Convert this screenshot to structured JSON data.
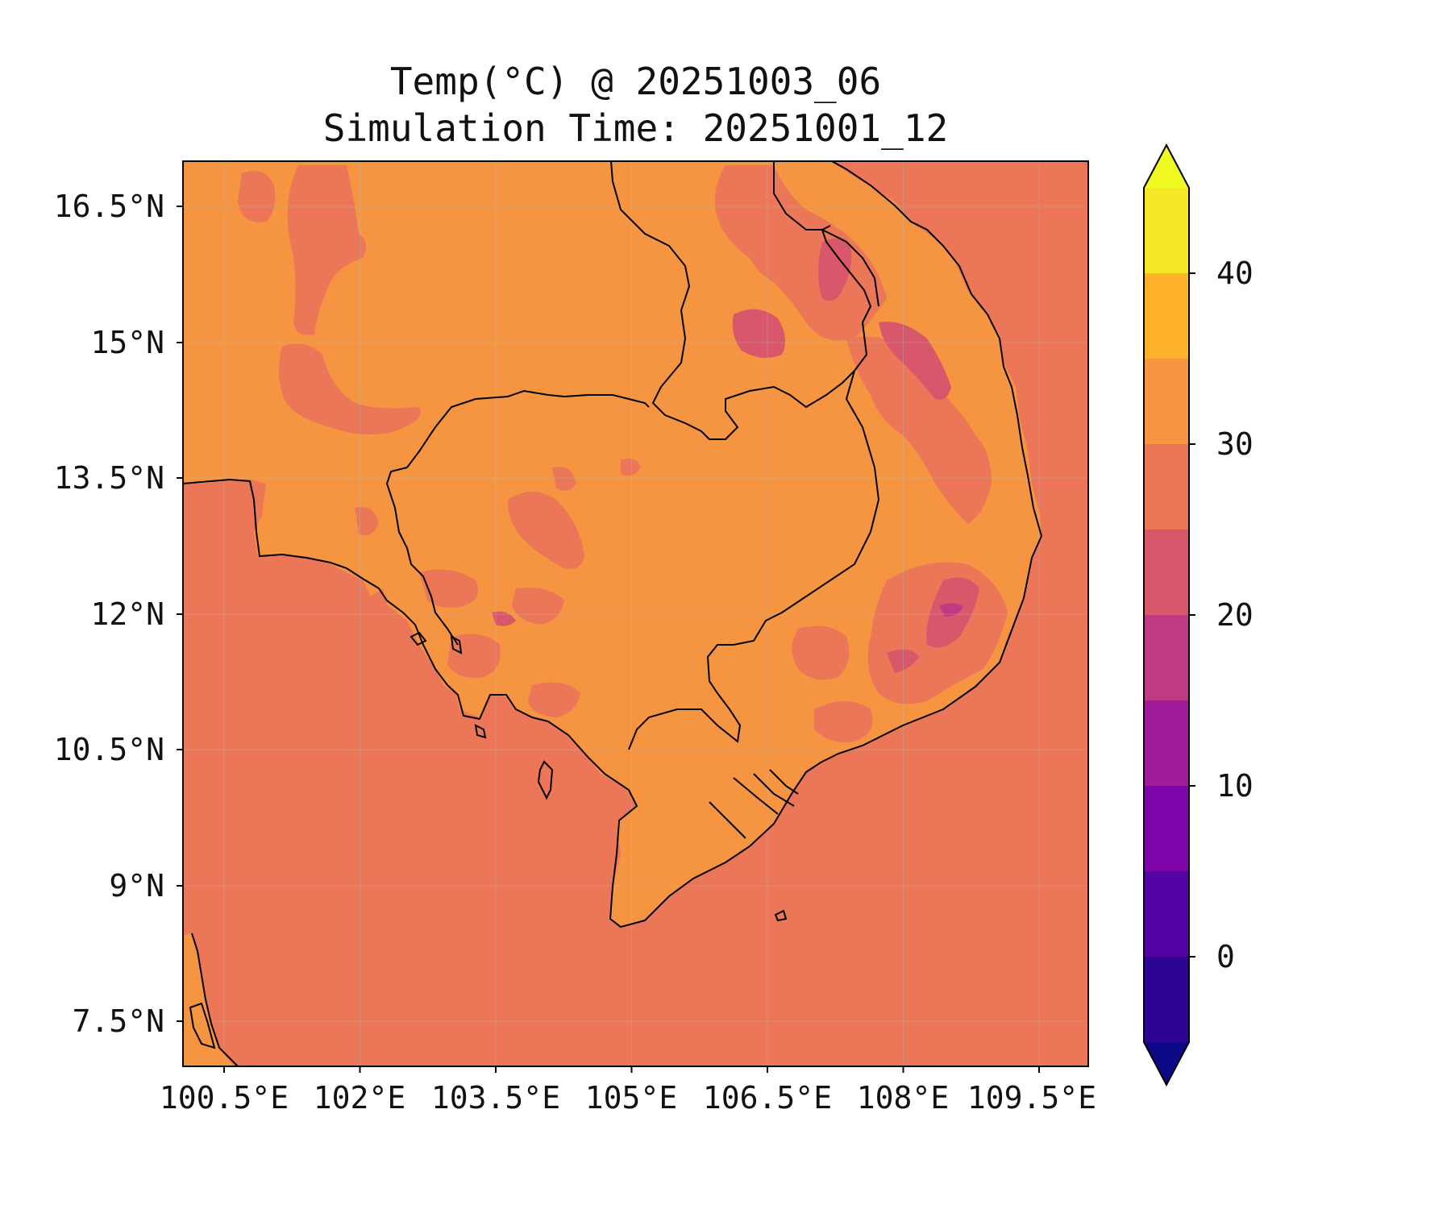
{
  "title": {
    "line1": "Temp(°C) @ 20251003_06",
    "line2": "Simulation Time: 20251001_12"
  },
  "map": {
    "lat_ticks": [
      "16.5°N",
      "15°N",
      "13.5°N",
      "12°N",
      "10.5°N",
      "9°N",
      "7.5°N"
    ],
    "lon_ticks": [
      "100.5°E",
      "102°E",
      "103.5°E",
      "105°E",
      "106.5°E",
      "108°E",
      "109.5°E"
    ],
    "lon_range": [
      100,
      110
    ],
    "lat_range": [
      7.05,
      17.05
    ],
    "ocean_value_range": [
      25,
      30
    ],
    "land_value_range": [
      30,
      35
    ],
    "gridlines": true
  },
  "colorbar": {
    "tick_labels": [
      "0",
      "10",
      "20",
      "30",
      "40"
    ],
    "tick_values": [
      0,
      10,
      20,
      30,
      40
    ],
    "levels": [
      -5,
      0,
      5,
      10,
      15,
      20,
      25,
      30,
      35,
      40,
      45
    ],
    "extend": "both",
    "colors": [
      "#0d0887",
      "#2c0594",
      "#5302a3",
      "#7e03a8",
      "#a11b9b",
      "#c03a83",
      "#d8576b",
      "#eb7655",
      "#f79540",
      "#feb22b",
      "#f5e626",
      "#f0f921"
    ]
  },
  "colors": {
    "ocean": "#eb7658",
    "land_warm": "#f59542",
    "land_cool": "#d8576b",
    "land_cooler": "#c03a83",
    "coastline": "#000000"
  }
}
